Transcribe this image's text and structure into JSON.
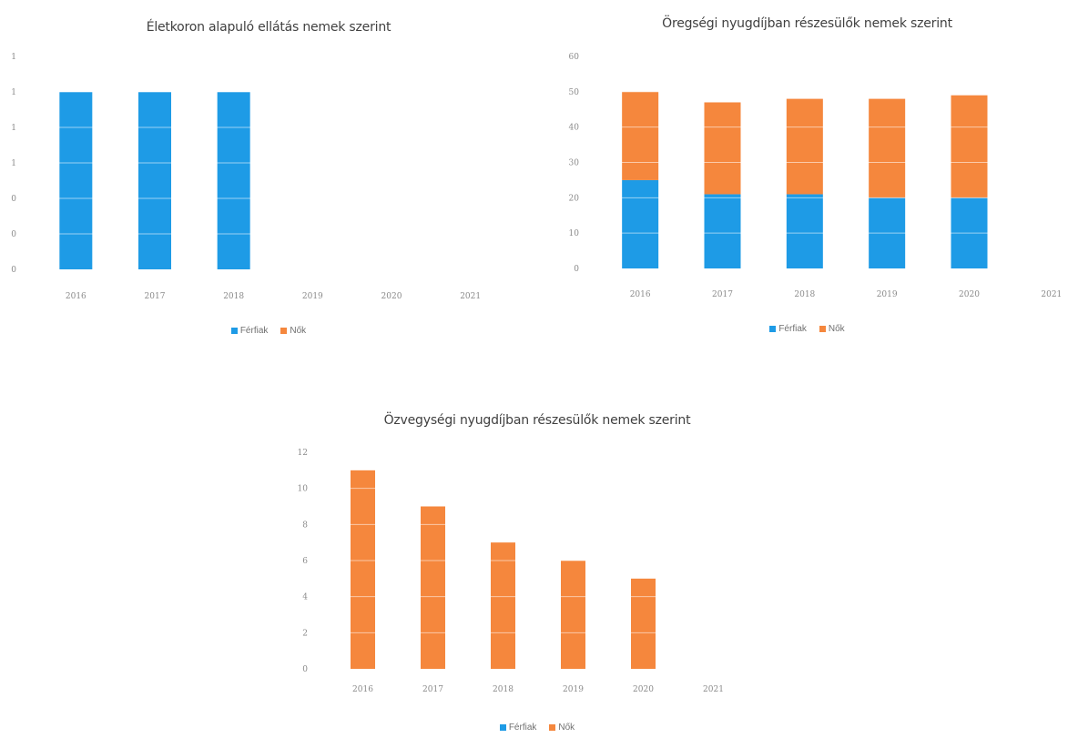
{
  "colors": {
    "ferfiak": "#1E9BE6",
    "nok": "#F5873D"
  },
  "legend": {
    "ferfiak": "Férfiak",
    "nok": "Nők"
  },
  "chart_data": [
    {
      "type": "bar",
      "stacked": true,
      "title": "Életkoron alapuló ellátás nemek szerint",
      "categories": [
        "2016",
        "2017",
        "2018",
        "2019",
        "2020",
        "2021"
      ],
      "yticks": [
        "0",
        "0",
        "0",
        "1",
        "1",
        "1",
        "1"
      ],
      "ylim": [
        0,
        6
      ],
      "series": [
        {
          "name": "Férfiak",
          "color": "#1E9BE6",
          "values": [
            5,
            5,
            5,
            0,
            0,
            0
          ]
        },
        {
          "name": "Nők",
          "color": "#F5873D",
          "values": [
            0,
            0,
            0,
            0,
            0,
            0
          ]
        }
      ],
      "grid": false,
      "legend_position": "bottom"
    },
    {
      "type": "bar",
      "stacked": true,
      "title": "Öregségi nyugdíjban részesülők nemek szerint",
      "categories": [
        "2016",
        "2017",
        "2018",
        "2019",
        "2020",
        "2021"
      ],
      "yticks": [
        "0",
        "10",
        "20",
        "30",
        "40",
        "50",
        "60"
      ],
      "ylim": [
        0,
        60
      ],
      "series": [
        {
          "name": "Férfiak",
          "color": "#1E9BE6",
          "values": [
            25,
            21,
            21,
            20,
            20,
            0
          ]
        },
        {
          "name": "Nők",
          "color": "#F5873D",
          "values": [
            25,
            26,
            27,
            28,
            29,
            0
          ]
        }
      ],
      "grid": false,
      "legend_position": "bottom"
    },
    {
      "type": "bar",
      "stacked": true,
      "title": "Özvegységi nyugdíjban részesülők nemek szerint",
      "categories": [
        "2016",
        "2017",
        "2018",
        "2019",
        "2020",
        "2021"
      ],
      "yticks": [
        "0",
        "2",
        "4",
        "6",
        "8",
        "10",
        "12"
      ],
      "ylim": [
        0,
        12
      ],
      "series": [
        {
          "name": "Férfiak",
          "color": "#1E9BE6",
          "values": [
            0,
            0,
            0,
            0,
            0,
            0
          ]
        },
        {
          "name": "Nők",
          "color": "#F5873D",
          "values": [
            11,
            9,
            7,
            6,
            5,
            0
          ]
        }
      ],
      "grid": false,
      "legend_position": "bottom"
    }
  ]
}
